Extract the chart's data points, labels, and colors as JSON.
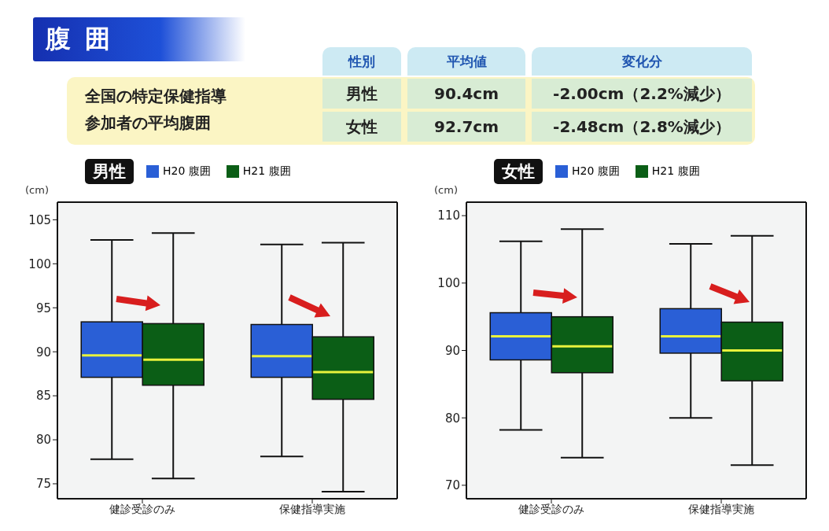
{
  "chart_data": [
    {
      "type": "other",
      "title": "腹囲",
      "annotations": [
        "全国の特定保健指導",
        "参加者の平均腹囲",
        "性別",
        "平均値",
        "変化分",
        "男性",
        "90.4cm",
        "-2.00cm（2.2%減少）",
        "女性",
        "92.7cm",
        "-2.48cm（2.8%減少）"
      ]
    },
    {
      "type": "box",
      "title": "男性",
      "ylabel": "(cm)",
      "categories": [
        "健診受診のみ",
        "保健指導実施"
      ],
      "ylim": [
        73.3,
        107
      ],
      "yticks": [
        75,
        80,
        85,
        90,
        95,
        100,
        105
      ],
      "grid": false,
      "legend": "top",
      "series": [
        {
          "name": "H20 腹囲",
          "color": "#2a5fd6",
          "boxes": [
            {
              "low": 77.8,
              "q1": 87.1,
              "median": 89.6,
              "q3": 93.4,
              "high": 102.7
            },
            {
              "low": 78.1,
              "q1": 87.1,
              "median": 89.5,
              "q3": 93.1,
              "high": 102.2
            }
          ]
        },
        {
          "name": "H21 腹囲",
          "color": "#0b5e16",
          "boxes": [
            {
              "low": 75.6,
              "q1": 86.2,
              "median": 89.1,
              "q3": 93.2,
              "high": 103.5
            },
            {
              "low": 74.1,
              "q1": 84.6,
              "median": 87.7,
              "q3": 91.7,
              "high": 102.4
            }
          ]
        }
      ]
    },
    {
      "type": "box",
      "title": "女性",
      "ylabel": "(cm)",
      "categories": [
        "健診受診のみ",
        "保健指導実施"
      ],
      "ylim": [
        68,
        112
      ],
      "yticks": [
        70,
        80,
        90,
        100,
        110
      ],
      "grid": false,
      "legend": "top",
      "series": [
        {
          "name": "H20 腹囲",
          "color": "#2a5fd6",
          "boxes": [
            {
              "low": 78.2,
              "q1": 88.6,
              "median": 92.1,
              "q3": 95.6,
              "high": 106.2
            },
            {
              "low": 80.0,
              "q1": 89.6,
              "median": 92.1,
              "q3": 96.2,
              "high": 105.8
            }
          ]
        },
        {
          "name": "H21 腹囲",
          "color": "#0b5e16",
          "boxes": [
            {
              "low": 74.1,
              "q1": 86.7,
              "median": 90.6,
              "q3": 95.0,
              "high": 108.0
            },
            {
              "low": 73.0,
              "q1": 85.5,
              "median": 90.0,
              "q3": 94.2,
              "high": 107.0
            }
          ]
        }
      ]
    }
  ]
}
